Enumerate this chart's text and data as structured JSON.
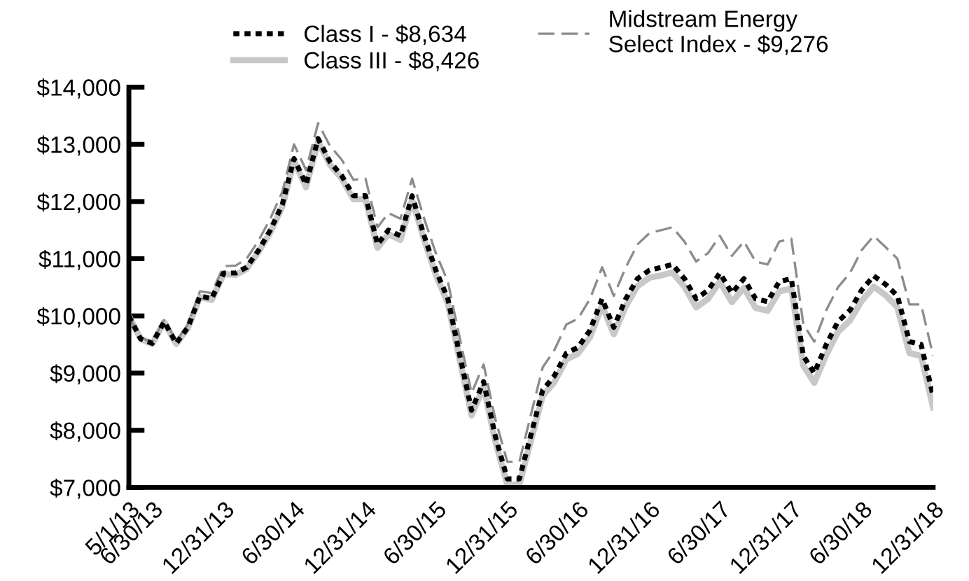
{
  "chart_data": {
    "type": "line",
    "x": [
      "2013-05-01",
      "2013-05-31",
      "2013-06-30",
      "2013-07-31",
      "2013-08-31",
      "2013-09-30",
      "2013-10-31",
      "2013-11-30",
      "2013-12-31",
      "2014-01-31",
      "2014-02-28",
      "2014-03-31",
      "2014-04-30",
      "2014-05-31",
      "2014-06-30",
      "2014-07-31",
      "2014-08-31",
      "2014-09-30",
      "2014-10-31",
      "2014-11-30",
      "2014-12-31",
      "2015-01-31",
      "2015-02-28",
      "2015-03-31",
      "2015-04-30",
      "2015-05-31",
      "2015-06-30",
      "2015-07-31",
      "2015-08-31",
      "2015-09-30",
      "2015-10-31",
      "2015-11-30",
      "2015-12-31",
      "2016-01-31",
      "2016-02-29",
      "2016-03-31",
      "2016-04-30",
      "2016-05-31",
      "2016-06-30",
      "2016-07-31",
      "2016-08-31",
      "2016-09-30",
      "2016-10-31",
      "2016-11-30",
      "2016-12-31",
      "2017-01-31",
      "2017-02-28",
      "2017-03-31",
      "2017-04-30",
      "2017-05-31",
      "2017-06-30",
      "2017-07-31",
      "2017-08-31",
      "2017-09-30",
      "2017-10-31",
      "2017-11-30",
      "2017-12-31",
      "2018-01-31",
      "2018-02-28",
      "2018-03-31",
      "2018-04-30",
      "2018-05-31",
      "2018-06-30",
      "2018-07-31",
      "2018-08-31",
      "2018-09-30",
      "2018-10-31",
      "2018-11-30",
      "2018-12-31"
    ],
    "series": [
      {
        "name": "Class III - $8,426",
        "color": "#c8c8c8",
        "line_style": "solid",
        "values": [
          10000,
          9600,
          9510,
          9890,
          9510,
          9790,
          10330,
          10280,
          10730,
          10720,
          10820,
          11120,
          11460,
          11910,
          12710,
          12250,
          13050,
          12650,
          12400,
          12040,
          12040,
          11190,
          11430,
          11330,
          12030,
          11330,
          10720,
          10220,
          9220,
          8260,
          8760,
          7810,
          7050,
          7050,
          7800,
          8600,
          8840,
          9240,
          9340,
          9630,
          10180,
          9680,
          10170,
          10520,
          10670,
          10710,
          10760,
          10510,
          10150,
          10300,
          10600,
          10240,
          10490,
          10140,
          10090,
          10430,
          10480,
          9130,
          8830,
          9320,
          9720,
          9920,
          10260,
          10510,
          10360,
          10150,
          9350,
          9300,
          8400
        ]
      },
      {
        "name": "Midstream Energy Select Index - $9,276",
        "color": "#8c8c8c",
        "line_style": "dashed",
        "values": [
          10000,
          9620,
          9540,
          9940,
          9560,
          9850,
          10430,
          10400,
          10870,
          10880,
          11000,
          11320,
          11700,
          12170,
          13000,
          12550,
          13370,
          12980,
          12730,
          12380,
          12400,
          11550,
          11800,
          11700,
          12400,
          11700,
          11100,
          10600,
          9600,
          8650,
          9150,
          8200,
          7450,
          7450,
          8250,
          9100,
          9400,
          9850,
          9950,
          10300,
          10850,
          10350,
          10850,
          11250,
          11450,
          11500,
          11550,
          11300,
          10950,
          11100,
          11400,
          11050,
          11300,
          10950,
          10900,
          11300,
          11350,
          9850,
          9550,
          10100,
          10500,
          10750,
          11150,
          11400,
          11200,
          11000,
          10200,
          10200,
          9300
        ]
      },
      {
        "name": "Class I - $8,634",
        "color": "#000000",
        "line_style": "dotted",
        "values": [
          10000,
          9600,
          9520,
          9900,
          9520,
          9800,
          10350,
          10300,
          10750,
          10750,
          10850,
          11150,
          11500,
          11950,
          12750,
          12300,
          13100,
          12700,
          12450,
          12100,
          12100,
          11250,
          11500,
          11400,
          12100,
          11400,
          10800,
          10300,
          9300,
          8350,
          8850,
          7900,
          7150,
          7150,
          7900,
          8700,
          8950,
          9350,
          9450,
          9750,
          10300,
          9800,
          10300,
          10650,
          10800,
          10850,
          10900,
          10650,
          10300,
          10450,
          10750,
          10400,
          10650,
          10300,
          10250,
          10600,
          10650,
          9300,
          9000,
          9500,
          9900,
          10100,
          10450,
          10700,
          10550,
          10350,
          9550,
          9500,
          8600
        ]
      }
    ],
    "xlim": [
      "2013-05-01",
      "2018-12-31"
    ],
    "xticks": [
      {
        "value": "2013-05-01",
        "label": "5/1/13"
      },
      {
        "value": "2013-06-30",
        "label": "6/30/13"
      },
      {
        "value": "2013-12-31",
        "label": "12/31/13"
      },
      {
        "value": "2014-06-30",
        "label": "6/30/14"
      },
      {
        "value": "2014-12-31",
        "label": "12/31/14"
      },
      {
        "value": "2015-06-30",
        "label": "6/30/15"
      },
      {
        "value": "2015-12-31",
        "label": "12/31/15"
      },
      {
        "value": "2016-06-30",
        "label": "6/30/16"
      },
      {
        "value": "2016-12-31",
        "label": "12/31/16"
      },
      {
        "value": "2017-06-30",
        "label": "6/30/17"
      },
      {
        "value": "2017-12-31",
        "label": "12/31/17"
      },
      {
        "value": "2018-06-30",
        "label": "6/30/18"
      },
      {
        "value": "2018-12-31",
        "label": "12/31/18"
      }
    ],
    "ylim": [
      7000,
      14000
    ],
    "yticks": [
      {
        "value": 7000,
        "label": "$7,000"
      },
      {
        "value": 8000,
        "label": "$8,000"
      },
      {
        "value": 9000,
        "label": "$9,000"
      },
      {
        "value": 10000,
        "label": "$10,000"
      },
      {
        "value": 11000,
        "label": "$11,000"
      },
      {
        "value": 12000,
        "label": "$12,000"
      },
      {
        "value": 13000,
        "label": "$13,000"
      },
      {
        "value": 14000,
        "label": "$14,000"
      }
    ],
    "grid": false,
    "legend": "top",
    "marker": "none"
  }
}
